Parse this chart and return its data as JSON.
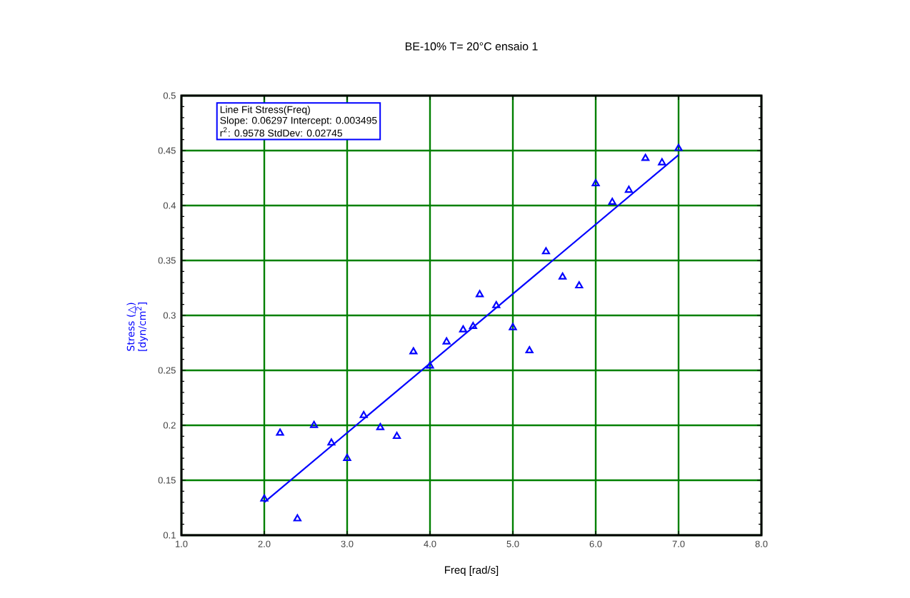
{
  "chart_data": {
    "type": "scatter",
    "title": "BE-10%    T= 20°C   ensaio 1",
    "xlabel": "Freq [rad/s]",
    "ylabel": "Stress (△) [dyn/cm$^{2}$]",
    "series": [
      {
        "type": "scatter",
        "color": "#0000ff",
        "marker": "triangle",
        "x": [
          2.0,
          2.19,
          2.4,
          2.6,
          2.81,
          3.0,
          3.2,
          3.4,
          3.6,
          3.8,
          4.0,
          4.2,
          4.4,
          4.52,
          4.6,
          4.8,
          5.0,
          5.2,
          5.4,
          5.6,
          5.8,
          6.0,
          6.2,
          6.4,
          6.6,
          6.8,
          7.0
        ],
        "values": [
          0.133,
          0.193,
          0.115,
          0.2,
          0.184,
          0.17,
          0.209,
          0.198,
          0.19,
          0.267,
          0.254,
          0.276,
          0.287,
          0.29,
          0.319,
          0.309,
          0.289,
          0.268,
          0.358,
          0.335,
          0.327,
          0.42,
          0.403,
          0.414,
          0.443,
          0.439,
          0.452
        ]
      },
      {
        "type": "line",
        "color": "#0000ff",
        "marker": "none",
        "x": [
          2.0,
          7.0
        ],
        "values": [
          0.13,
          0.446
        ]
      }
    ],
    "annotations": [
      "Line Fit Stress(Freq)",
      "Slope: 0.06297 Intercept: 0.003495",
      "r$^{2}$: 0.9578 StdDev: 0.02745"
    ],
    "xlim": [
      1,
      8
    ],
    "ylim": [
      0.1,
      0.5
    ],
    "xticks": [
      {
        "value": 1,
        "label": "1.0"
      },
      {
        "value": 2,
        "label": "2.0"
      },
      {
        "value": 3,
        "label": "3.0"
      },
      {
        "value": 4,
        "label": "4.0"
      },
      {
        "value": 5,
        "label": "5.0"
      },
      {
        "value": 6,
        "label": "6.0"
      },
      {
        "value": 7,
        "label": "7.0"
      },
      {
        "value": 8,
        "label": "8.0"
      }
    ],
    "yticks": [
      0.1,
      0.15,
      0.2,
      0.25,
      0.3,
      0.35,
      0.4,
      0.45,
      0.5
    ],
    "grid": true
  }
}
